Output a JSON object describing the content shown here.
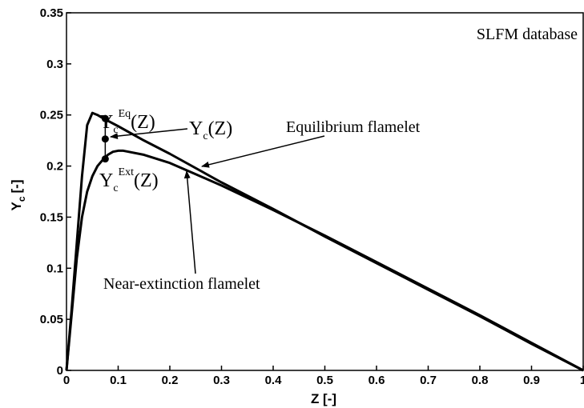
{
  "chart_data": {
    "type": "line",
    "title": "",
    "xlabel": "Z [-]",
    "ylabel": {
      "main": "Y",
      "sub": "c",
      "unit": "[-]"
    },
    "xlim": [
      0,
      1
    ],
    "ylim": [
      0,
      0.35
    ],
    "xticks": [
      0,
      0.1,
      0.2,
      0.3,
      0.4,
      0.5,
      0.6,
      0.7,
      0.8,
      0.9,
      1
    ],
    "xtick_labels": [
      "0",
      "0.1",
      "0.2",
      "0.3",
      "0.4",
      "0.5",
      "0.6",
      "0.7",
      "0.8",
      "0.9",
      "1"
    ],
    "yticks": [
      0,
      0.05,
      0.1,
      0.15,
      0.2,
      0.25,
      0.3,
      0.35
    ],
    "ytick_labels": [
      "0",
      "0.05",
      "0.1",
      "0.15",
      "0.2",
      "0.25",
      "0.3",
      "0.35"
    ],
    "grid": false,
    "series": [
      {
        "x": [
          0,
          0.01,
          0.02,
          0.03,
          0.04,
          0.05,
          0.06,
          0.07,
          0.1,
          0.15,
          0.2,
          0.3,
          0.4,
          0.5,
          0.6,
          0.7,
          0.8,
          0.9,
          1.0
        ],
        "y": [
          0,
          0.06,
          0.125,
          0.19,
          0.24,
          0.252,
          0.25,
          0.247,
          0.239,
          0.225,
          0.212,
          0.184,
          0.158,
          0.131,
          0.105,
          0.079,
          0.053,
          0.026,
          0
        ]
      },
      {
        "x": [
          0,
          0.01,
          0.02,
          0.03,
          0.04,
          0.05,
          0.06,
          0.07,
          0.08,
          0.09,
          0.1,
          0.11,
          0.12,
          0.15,
          0.2,
          0.25,
          0.3,
          0.4,
          0.5,
          0.6,
          0.7,
          0.8,
          0.9,
          1.0
        ],
        "y": [
          0,
          0.055,
          0.11,
          0.15,
          0.175,
          0.19,
          0.2,
          0.206,
          0.211,
          0.214,
          0.215,
          0.215,
          0.214,
          0.211,
          0.203,
          0.192,
          0.181,
          0.157,
          0.132,
          0.106,
          0.08,
          0.054,
          0.027,
          0
        ]
      }
    ],
    "markers": [
      {
        "x": 0.075,
        "y": 0.2465
      },
      {
        "x": 0.075,
        "y": 0.2265
      },
      {
        "x": 0.075,
        "y": 0.207
      }
    ],
    "annotations": {
      "box_label": "SLFM database",
      "yc_eq": {
        "main": "Y",
        "sub": "c",
        "sup": "Eq",
        "arg": "(Z)"
      },
      "yc": {
        "main": "Y",
        "sub": "c",
        "arg": "(Z)"
      },
      "yc_ext": {
        "main": "Y",
        "sub": "c",
        "sup": "Ext",
        "arg": "(Z)"
      },
      "equilibrium": "Equilibrium flamelet",
      "near_extinction": "Near-extinction flamelet"
    }
  }
}
